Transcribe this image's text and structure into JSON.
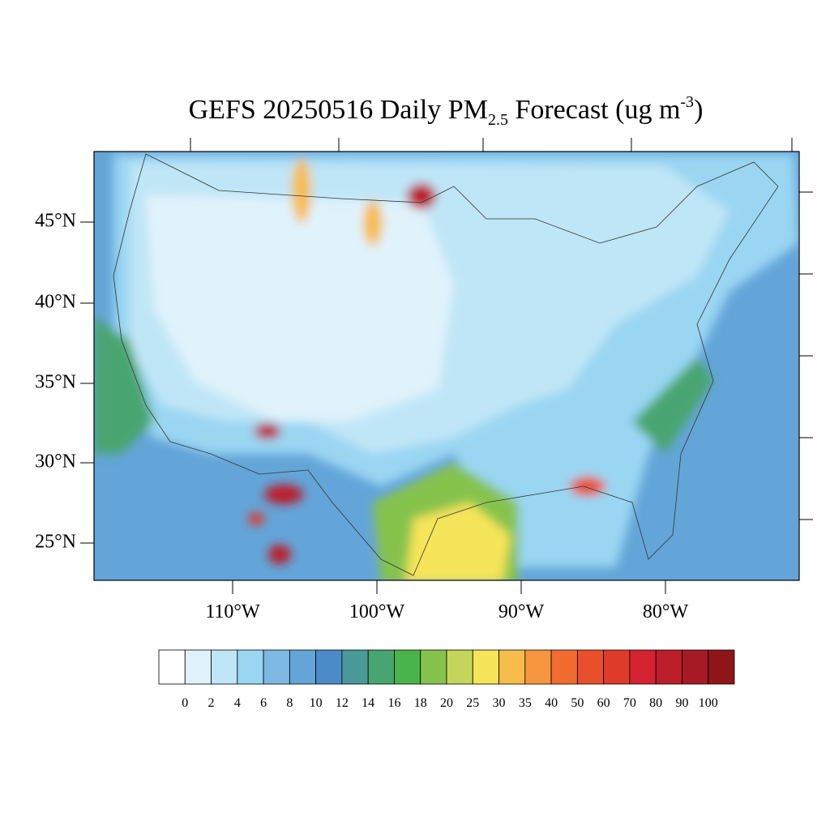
{
  "title": {
    "main": "GEFS 20250516 Daily PM",
    "subscript": "2.5",
    "rest": " Forecast (ug m",
    "superscript": "-3",
    "close": ")"
  },
  "lat_labels": [
    "45°N",
    "40°N",
    "35°N",
    "30°N",
    "25°N"
  ],
  "lon_labels": [
    "110°W",
    "100°W",
    "90°W",
    "80°W"
  ],
  "colorbar": {
    "labels": [
      "0",
      "2",
      "4",
      "6",
      "8",
      "10",
      "12",
      "14",
      "16",
      "18",
      "20",
      "25",
      "30",
      "35",
      "40",
      "50",
      "60",
      "70",
      "80",
      "90",
      "100"
    ],
    "colors": [
      "#ffffff",
      "#e0f3fb",
      "#bfe6f7",
      "#9ad6f2",
      "#7db9e2",
      "#63a5d8",
      "#4b8bc8",
      "#4a9a9a",
      "#48a56f",
      "#49b449",
      "#86c34d",
      "#c3d65a",
      "#f6e45a",
      "#f7bc4b",
      "#f6963f",
      "#f26b31",
      "#e8502d",
      "#de3b2a",
      "#d42230",
      "#bc1d2a",
      "#a51a24",
      "#8e1619"
    ]
  }
}
